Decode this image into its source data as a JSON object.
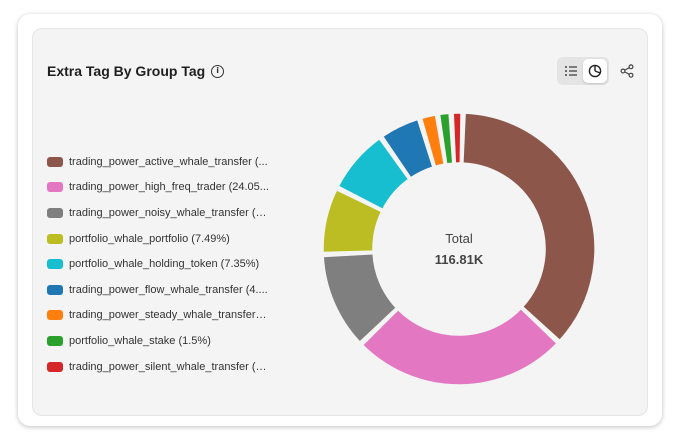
{
  "widget": {
    "title": "Extra Tag By Group Tag",
    "info_icon": "info-icon",
    "toolbar": {
      "list_view_icon": "list-icon",
      "pie_view_icon": "pie-chart-icon",
      "share_icon": "share-icon",
      "active_view": "pie"
    }
  },
  "center": {
    "title": "Total",
    "value": "116.81K"
  },
  "legend": [
    {
      "label": "trading_power_active_whale_transfer (...",
      "color": "#8c564b"
    },
    {
      "label": "trading_power_high_freq_trader (24.05...",
      "color": "#e377c2"
    },
    {
      "label": "trading_power_noisy_whale_transfer (1...",
      "color": "#7f7f7f"
    },
    {
      "label": "portfolio_whale_portfolio (7.49%)",
      "color": "#bcbd22"
    },
    {
      "label": "portfolio_whale_holding_token (7.35%)",
      "color": "#17becf"
    },
    {
      "label": "trading_power_flow_whale_transfer (4....",
      "color": "#1f77b4"
    },
    {
      "label": "trading_power_steady_whale_transfer (...",
      "color": "#ff7f0e"
    },
    {
      "label": "portfolio_whale_stake (1.5%)",
      "color": "#2ca02c"
    },
    {
      "label": "trading_power_silent_whale_transfer (1...",
      "color": "#d62728"
    }
  ],
  "chart_data": {
    "type": "pie",
    "donut": true,
    "total_label": "Total",
    "total_value": "116.81K",
    "series": [
      {
        "name": "trading_power_active_whale_transfer",
        "percent": 34.0,
        "color": "#8c564b"
      },
      {
        "name": "trading_power_high_freq_trader",
        "percent": 24.05,
        "color": "#e377c2"
      },
      {
        "name": "trading_power_noisy_whale_transfer",
        "percent": 10.8,
        "color": "#7f7f7f"
      },
      {
        "name": "portfolio_whale_portfolio",
        "percent": 7.49,
        "color": "#bcbd22"
      },
      {
        "name": "portfolio_whale_holding_token",
        "percent": 7.35,
        "color": "#17becf"
      },
      {
        "name": "trading_power_flow_whale_transfer",
        "percent": 4.7,
        "color": "#1f77b4"
      },
      {
        "name": "trading_power_steady_whale_transfer",
        "percent": 2.0,
        "color": "#ff7f0e"
      },
      {
        "name": "portfolio_whale_stake",
        "percent": 1.5,
        "color": "#2ca02c"
      },
      {
        "name": "trading_power_silent_whale_transfer",
        "percent": 1.3,
        "color": "#d62728"
      }
    ],
    "legend_position": "left"
  }
}
